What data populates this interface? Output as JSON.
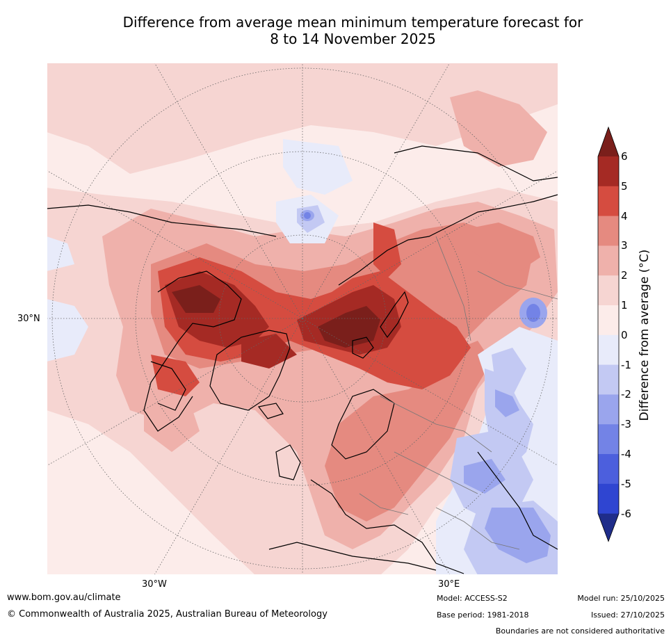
{
  "title": {
    "line1": "Difference from average mean minimum temperature forecast for",
    "line2": "8 to 14 November 2025"
  },
  "map": {
    "projection": "north-polar-stereographic",
    "lat_label": "30°N",
    "lon_labels": [
      "30°W",
      "30°E"
    ]
  },
  "colorbar": {
    "label": "Difference from average (°C)",
    "ticks": [
      "6",
      "5",
      "4",
      "3",
      "2",
      "1",
      "0",
      "-1",
      "-2",
      "-3",
      "-4",
      "-5",
      "-6"
    ],
    "colors": [
      "#a52a24",
      "#d54c40",
      "#e58a80",
      "#efb1ab",
      "#f6d5d2",
      "#fcecea",
      "#e8ebfa",
      "#c3c9f3",
      "#9aa5ed",
      "#7383e6",
      "#4c5fdd",
      "#2f45d1",
      "#1f2d8a"
    ],
    "over_color": "#7a1f1b",
    "under_color": "#1f2d8a"
  },
  "footer": {
    "url": "www.bom.gov.au/climate",
    "copyright": "© Commonwealth of Australia 2025, Australian Bureau of Meteorology",
    "model": "Model: ACCESS-S2",
    "base_period": "Base period: 1981-2018",
    "model_run": "Model run: 25/10/2025",
    "issued": "Issued: 27/10/2025",
    "disclaimer": "Boundaries are not considered authoritative"
  }
}
